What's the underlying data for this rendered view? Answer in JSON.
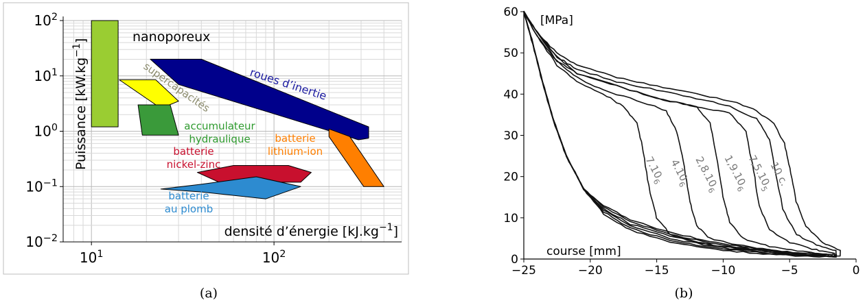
{
  "chart_data": [
    {
      "type": "area",
      "panel_label": "(a)",
      "xscale": "log",
      "yscale": "log",
      "xlim": [
        7,
        500
      ],
      "ylim": [
        0.01,
        100
      ],
      "x_ticks": [
        {
          "value": 10,
          "base": "10",
          "exp": "1"
        },
        {
          "value": 100,
          "base": "10",
          "exp": "2"
        }
      ],
      "y_ticks": [
        {
          "value": 0.01,
          "base": "10",
          "exp": "−2"
        },
        {
          "value": 0.1,
          "base": "10",
          "exp": "−1"
        },
        {
          "value": 1,
          "base": "10",
          "exp": "0"
        },
        {
          "value": 10,
          "base": "10",
          "exp": "1"
        },
        {
          "value": 100,
          "base": "10",
          "exp": "2"
        }
      ],
      "grid": true,
      "xlabel": {
        "main": "densité d’énergie [kJ.kg",
        "exp": "−1",
        "close": "]"
      },
      "ylabel": {
        "main": "Puissance [kW.kg",
        "exp": "−1",
        "close": "]"
      },
      "regions": [
        {
          "name": "nanoporeux",
          "color": "#9acd32",
          "label": "nanoporeux",
          "label_color": "#000000",
          "points": [
            [
              10,
              1.2
            ],
            [
              14,
              1.2
            ],
            [
              14,
              100
            ],
            [
              10,
              100
            ]
          ]
        },
        {
          "name": "supercapacités",
          "color": "#ffff00",
          "label": "supercapacités",
          "label_color": "#8c8c6e",
          "points": [
            [
              14.2,
              8.5
            ],
            [
              22.5,
              8.5
            ],
            [
              30,
              3.5
            ],
            [
              24,
              2.6
            ]
          ]
        },
        {
          "name": "accumulateur hydraulique",
          "color": "#3a9a3a",
          "label_lines": [
            "accumulateur",
            "hydraulique"
          ],
          "label_color": "#2e9a2e",
          "points": [
            [
              18,
              3
            ],
            [
              27,
              3
            ],
            [
              30,
              0.85
            ],
            [
              19,
              0.85
            ]
          ]
        },
        {
          "name": "roues d’inertie",
          "color": "#00008b",
          "label": "roues d’inertie",
          "label_color": "#1a1aa0",
          "points": [
            [
              21,
              20
            ],
            [
              40,
              20
            ],
            [
              330,
              1.2
            ],
            [
              330,
              0.75
            ],
            [
              290,
              0.7
            ],
            [
              30,
              7
            ]
          ]
        },
        {
          "name": "batterie lithium-ion",
          "color": "#ff7f00",
          "label_lines": [
            "batterie",
            "lithium-ion"
          ],
          "label_color": "#ff7f00",
          "points": [
            [
              200,
              1.1
            ],
            [
              260,
              0.8
            ],
            [
              400,
              0.1
            ],
            [
              310,
              0.1
            ],
            [
              200,
              0.8
            ]
          ]
        },
        {
          "name": "batterie nickel-zinc",
          "color": "#c8102e",
          "label_lines": [
            "batterie",
            "nickel-zinc"
          ],
          "label_color": "#c8102e",
          "points": [
            [
              38,
              0.18
            ],
            [
              60,
              0.24
            ],
            [
              120,
              0.24
            ],
            [
              160,
              0.18
            ],
            [
              140,
              0.12
            ],
            [
              50,
              0.12
            ]
          ]
        },
        {
          "name": "batterie au plomb",
          "color": "#2d8bd0",
          "label_lines": [
            "batterie",
            "au plomb"
          ],
          "label_color": "#2d8bd0",
          "points": [
            [
              24,
              0.09
            ],
            [
              40,
              0.11
            ],
            [
              80,
              0.15
            ],
            [
              140,
              0.1
            ],
            [
              90,
              0.06
            ],
            [
              40,
              0.08
            ]
          ]
        }
      ]
    },
    {
      "type": "line",
      "panel_label": "(b)",
      "xlim": [
        -25,
        0
      ],
      "ylim": [
        0,
        60
      ],
      "x_ticks": [
        -25,
        -20,
        -15,
        -10,
        -5,
        0
      ],
      "y_ticks": [
        0,
        10,
        20,
        30,
        40,
        50,
        60
      ],
      "x_tick_labels": [
        "−25",
        "−20",
        "−15",
        "−10",
        "−5",
        "0"
      ],
      "y_tick_labels": [
        "0",
        "10",
        "20",
        "30",
        "40",
        "50",
        "60"
      ],
      "grid": false,
      "xlabel": "course [mm]",
      "ylabel": "[MPa]",
      "series": [
        {
          "name": "7.10⁶",
          "label_base": "7.10",
          "label_exp": "6",
          "knee": -16.5,
          "plateau": 35,
          "upper": [
            [
              -25,
              60
            ],
            [
              -24,
              54
            ],
            [
              -22.5,
              47
            ],
            [
              -21,
              43
            ],
            [
              -19,
              40
            ],
            [
              -17.5,
              37
            ],
            [
              -16.5,
              33
            ],
            [
              -16,
              26
            ],
            [
              -15.5,
              16
            ],
            [
              -15,
              10
            ],
            [
              -14,
              6
            ],
            [
              -12,
              4
            ],
            [
              -10,
              3
            ],
            [
              -7,
              2
            ],
            [
              -4.5,
              1.2
            ],
            [
              -2.3,
              1
            ]
          ]
        },
        {
          "name": "4.10⁶",
          "label_base": "4.10",
          "label_exp": "6",
          "knee": -13.5,
          "plateau": 36,
          "upper": [
            [
              -25,
              60
            ],
            [
              -24,
              54
            ],
            [
              -22.5,
              48
            ],
            [
              -21,
              44
            ],
            [
              -19,
              41
            ],
            [
              -16,
              38
            ],
            [
              -14.3,
              36
            ],
            [
              -13.5,
              31
            ],
            [
              -13,
              24
            ],
            [
              -12.5,
              14
            ],
            [
              -12,
              8
            ],
            [
              -11,
              5
            ],
            [
              -9,
              3.5
            ],
            [
              -6,
              2
            ],
            [
              -3.5,
              1.3
            ],
            [
              -1.8,
              1
            ]
          ]
        },
        {
          "name": "2,8.10⁶",
          "label_base": "2,8.10",
          "label_exp": "6",
          "knee": -11,
          "plateau": 37,
          "upper": [
            [
              -25,
              60
            ],
            [
              -24,
              55
            ],
            [
              -22.5,
              48
            ],
            [
              -21,
              45
            ],
            [
              -18,
              42
            ],
            [
              -15,
              39
            ],
            [
              -12,
              37
            ],
            [
              -11,
              33
            ],
            [
              -10.5,
              25
            ],
            [
              -10,
              15
            ],
            [
              -9.5,
              9
            ],
            [
              -8.5,
              5
            ],
            [
              -6.5,
              3
            ],
            [
              -4,
              1.8
            ],
            [
              -2.2,
              1.2
            ],
            [
              -1.5,
              1
            ]
          ]
        },
        {
          "name": "1,9.10⁶",
          "label_base": "1,9.10",
          "label_exp": "6",
          "knee": -8.3,
          "plateau": 35,
          "upper": [
            [
              -25,
              60
            ],
            [
              -24,
              55
            ],
            [
              -22.5,
              49
            ],
            [
              -21,
              45
            ],
            [
              -18,
              42
            ],
            [
              -15,
              39
            ],
            [
              -12,
              37
            ],
            [
              -9.5,
              35.5
            ],
            [
              -8.3,
              31
            ],
            [
              -7.8,
              23
            ],
            [
              -7.3,
              13
            ],
            [
              -6.5,
              7
            ],
            [
              -5,
              4
            ],
            [
              -3,
              2.2
            ],
            [
              -1.6,
              1.5
            ]
          ]
        },
        {
          "name": "7,5.10⁵",
          "label_base": "7,5.10",
          "label_exp": "5",
          "knee": -6.5,
          "plateau": 34,
          "upper": [
            [
              -25,
              60
            ],
            [
              -24,
              55
            ],
            [
              -22.5,
              49
            ],
            [
              -21,
              46
            ],
            [
              -18,
              43
            ],
            [
              -15,
              41
            ],
            [
              -12,
              39
            ],
            [
              -9.5,
              37
            ],
            [
              -7.5,
              34
            ],
            [
              -6.5,
              29
            ],
            [
              -6,
              20
            ],
            [
              -5.5,
              12
            ],
            [
              -4.5,
              6
            ],
            [
              -3,
              3.5
            ],
            [
              -1.5,
              2
            ]
          ]
        },
        {
          "name": "10 c.",
          "label_base": "10 c.",
          "label_exp": "",
          "knee": -5,
          "plateau": 30,
          "upper": [
            [
              -25,
              60
            ],
            [
              -24,
              55
            ],
            [
              -22.5,
              50
            ],
            [
              -21,
              47
            ],
            [
              -18,
              44
            ],
            [
              -15,
              42
            ],
            [
              -12,
              40
            ],
            [
              -9,
              38
            ],
            [
              -7.5,
              36
            ],
            [
              -6.2,
              33
            ],
            [
              -5.4,
              28
            ],
            [
              -5,
              22
            ],
            [
              -4.5,
              14
            ],
            [
              -3.8,
              8
            ],
            [
              -2.5,
              4
            ],
            [
              -1.2,
              2
            ]
          ]
        }
      ]
    }
  ]
}
